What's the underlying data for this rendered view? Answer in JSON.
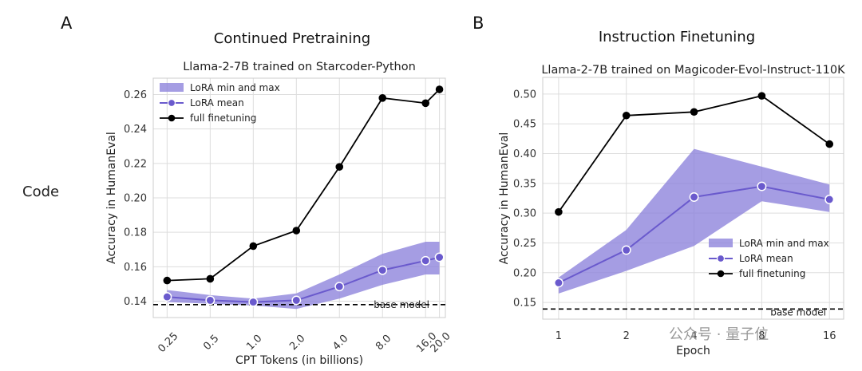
{
  "row_label": "Code",
  "watermark": "公众号 · 量子位",
  "colors": {
    "lora_band": "#8f85dc",
    "lora_mean": "#6a5acd",
    "full": "#000000",
    "grid": "#dddddd"
  },
  "chart_data": [
    {
      "panel": "A",
      "suptitle": "Continued Pretraining",
      "title": "Llama-2-7B trained on Starcoder-Python",
      "type": "line",
      "xlabel": "CPT Tokens (in billions)",
      "ylabel": "Accuracy in HumanEval",
      "x_scale": "log",
      "x": [
        0.25,
        0.5,
        1.0,
        2.0,
        4.0,
        8.0,
        16.0,
        20.0
      ],
      "x_tick_labels": [
        "0.25",
        "0.5",
        "1.0",
        "2.0",
        "4.0",
        "8.0",
        "16.0",
        "20.0"
      ],
      "xlim": [
        0.2,
        22
      ],
      "ylim": [
        0.1305,
        0.2695
      ],
      "yticks": [
        0.14,
        0.16,
        0.18,
        0.2,
        0.22,
        0.24,
        0.26
      ],
      "y_tick_labels": [
        "0.14",
        "0.16",
        "0.18",
        "0.20",
        "0.22",
        "0.24",
        "0.26"
      ],
      "grid": true,
      "legend": "top-left",
      "series": [
        {
          "name": "full finetuning",
          "values": [
            0.152,
            0.153,
            0.172,
            0.181,
            0.218,
            0.258,
            0.255,
            0.263
          ]
        },
        {
          "name": "LoRA mean",
          "values": [
            0.1425,
            0.1405,
            0.1395,
            0.1405,
            0.1485,
            0.158,
            0.1635,
            0.1655
          ]
        }
      ],
      "band": {
        "name": "LoRA min and max",
        "lower": [
          0.1395,
          0.1385,
          0.1375,
          0.1355,
          0.1415,
          0.1495,
          0.1555,
          0.1555
        ],
        "upper": [
          0.1465,
          0.1435,
          0.1415,
          0.1445,
          0.1555,
          0.1675,
          0.1745,
          0.1745
        ]
      },
      "reference_line": {
        "label": "base model",
        "y": 0.138
      }
    },
    {
      "panel": "B",
      "suptitle": "Instruction Finetuning",
      "title": "Llama-2-7B trained on Magicoder-Evol-Instruct-110K",
      "type": "line",
      "xlabel": "Epoch",
      "ylabel": "Accuracy in HumanEval",
      "x_scale": "log2",
      "x": [
        1,
        2,
        4,
        8,
        16
      ],
      "x_tick_labels": [
        "1",
        "2",
        "4",
        "8",
        "16"
      ],
      "xlim": [
        0.85,
        18.5
      ],
      "ylim": [
        0.122,
        0.528
      ],
      "yticks": [
        0.15,
        0.2,
        0.25,
        0.3,
        0.35,
        0.4,
        0.45,
        0.5
      ],
      "y_tick_labels": [
        "0.15",
        "0.20",
        "0.25",
        "0.30",
        "0.35",
        "0.40",
        "0.45",
        "0.50"
      ],
      "grid": true,
      "legend": "center-right",
      "series": [
        {
          "name": "full finetuning",
          "values": [
            0.302,
            0.464,
            0.47,
            0.497,
            0.416
          ]
        },
        {
          "name": "LoRA mean",
          "values": [
            0.183,
            0.238,
            0.327,
            0.345,
            0.323
          ]
        }
      ],
      "band": {
        "name": "LoRA min and max",
        "lower": [
          0.165,
          0.203,
          0.245,
          0.32,
          0.302
        ],
        "upper": [
          0.192,
          0.272,
          0.408,
          0.378,
          0.348
        ]
      },
      "reference_line": {
        "label": "base model",
        "y": 0.139
      }
    }
  ]
}
